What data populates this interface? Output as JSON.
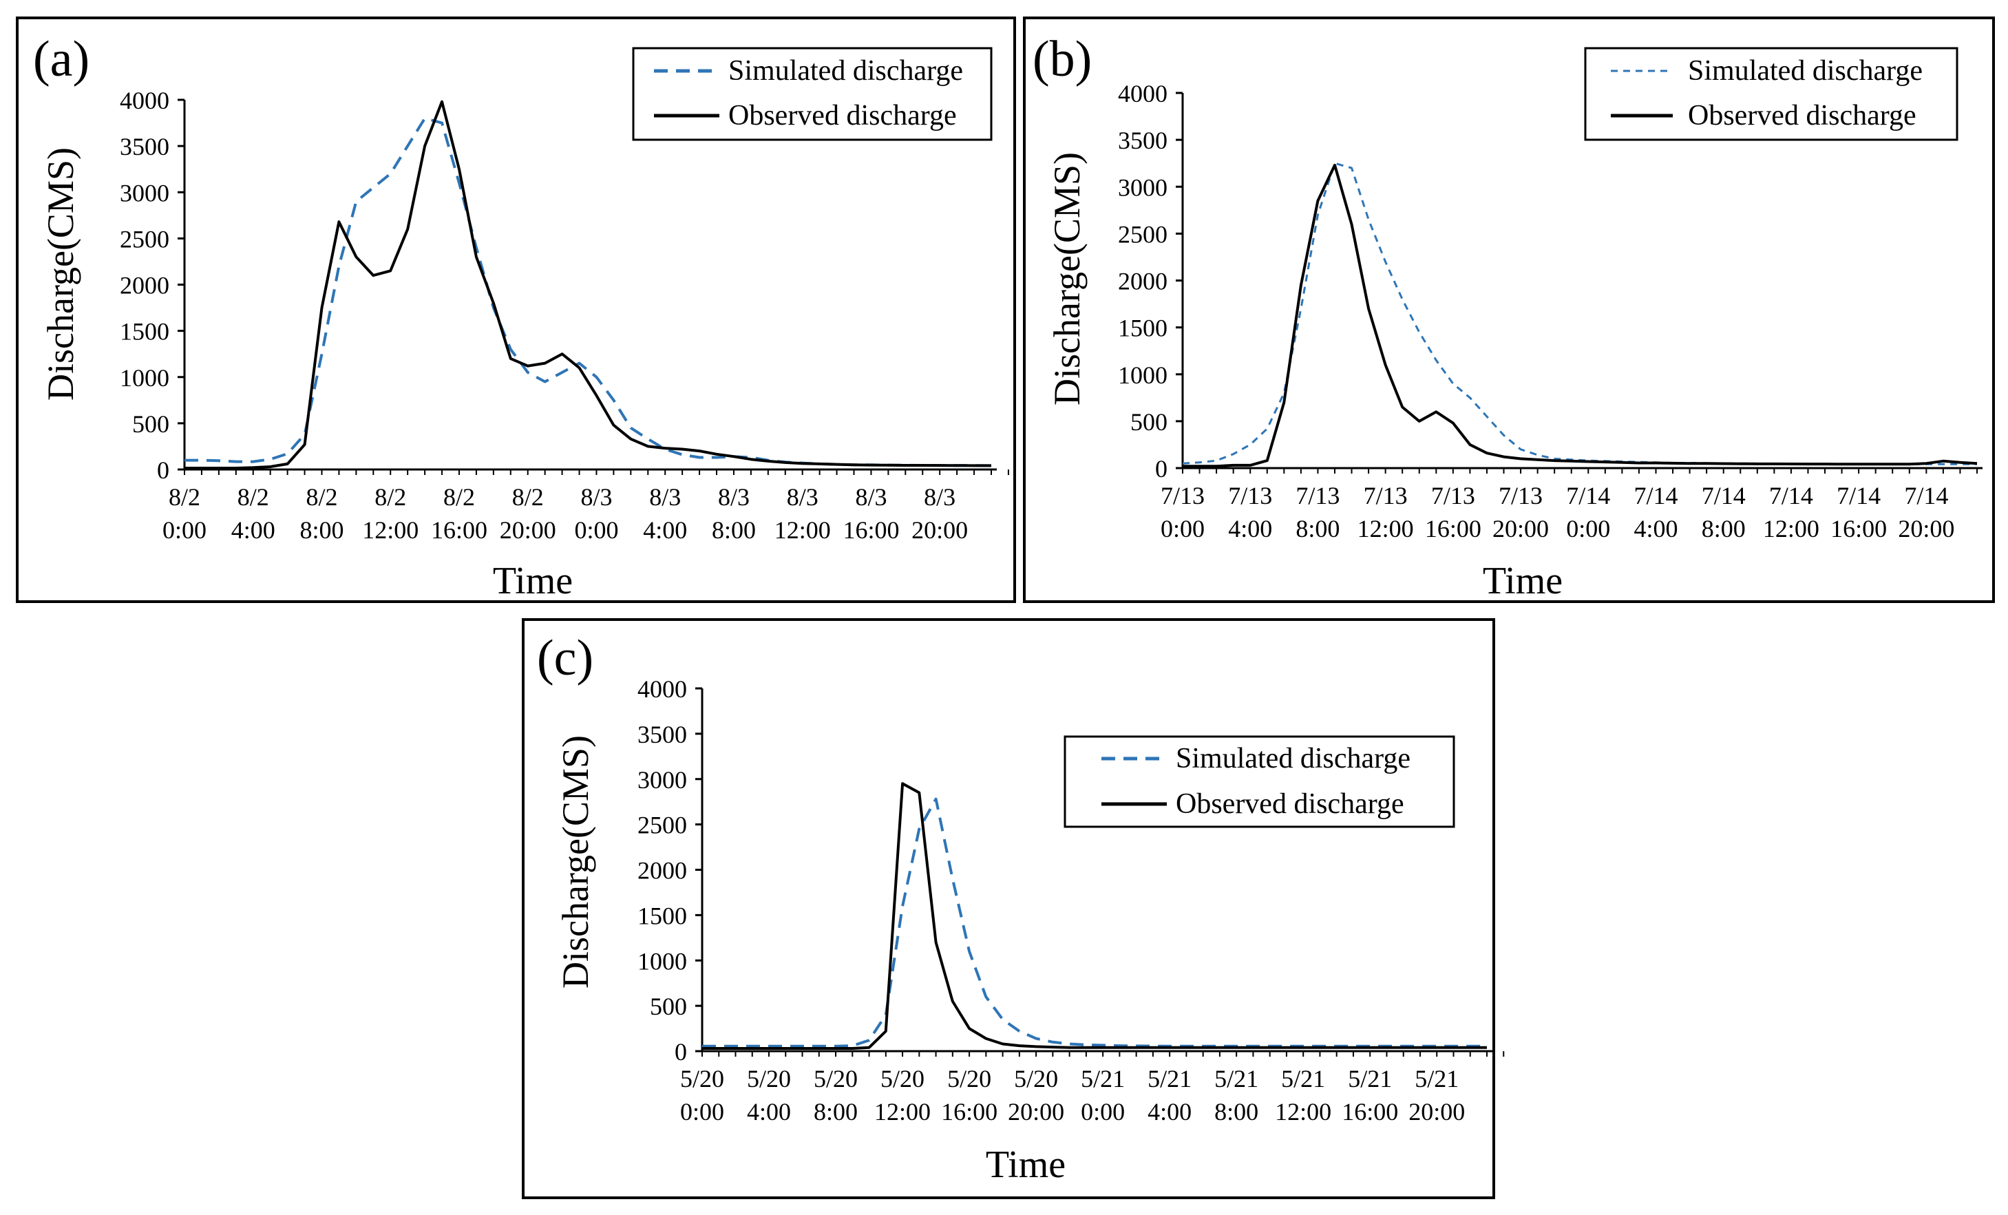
{
  "figure": {
    "legend_simulated": "Simulated discharge",
    "legend_observed": "Observed discharge",
    "simulated_color": "#2e75b6",
    "observed_color": "#000000"
  },
  "chart_data": [
    {
      "type": "line",
      "panel_label": "(a)",
      "xlabel": "Time",
      "ylabel": "Discharge(CMS)",
      "ylim": [
        0,
        4000
      ],
      "yticks": [
        0,
        500,
        1000,
        1500,
        2000,
        2500,
        3000,
        3500,
        4000
      ],
      "xlim": [
        0,
        47
      ],
      "x_tick_positions": [
        0,
        4,
        8,
        12,
        16,
        20,
        24,
        28,
        32,
        36,
        40,
        44
      ],
      "x_tick_labels": [
        [
          "8/2",
          "0:00"
        ],
        [
          "8/2",
          "4:00"
        ],
        [
          "8/2",
          "8:00"
        ],
        [
          "8/2",
          "12:00"
        ],
        [
          "8/2",
          "16:00"
        ],
        [
          "8/2",
          "20:00"
        ],
        [
          "8/3",
          "0:00"
        ],
        [
          "8/3",
          "4:00"
        ],
        [
          "8/3",
          "8:00"
        ],
        [
          "8/3",
          "12:00"
        ],
        [
          "8/3",
          "16:00"
        ],
        [
          "8/3",
          "20:00"
        ]
      ],
      "legend_position": "top-right",
      "x": [
        0,
        1,
        2,
        3,
        4,
        5,
        6,
        7,
        8,
        9,
        10,
        11,
        12,
        13,
        14,
        15,
        16,
        17,
        18,
        19,
        20,
        21,
        22,
        23,
        24,
        25,
        26,
        27,
        28,
        29,
        30,
        31,
        32,
        33,
        34,
        35,
        36,
        37,
        38,
        39,
        40,
        41,
        42,
        43,
        44,
        45,
        46,
        47
      ],
      "series": [
        {
          "name": "Simulated discharge",
          "style": "dashed",
          "values": [
            100,
            100,
            95,
            85,
            85,
            110,
            170,
            380,
            1250,
            2200,
            2900,
            3050,
            3200,
            3500,
            3800,
            3750,
            3100,
            2400,
            1750,
            1300,
            1050,
            950,
            1050,
            1150,
            1000,
            750,
            450,
            330,
            220,
            160,
            130,
            130,
            140,
            130,
            100,
            80,
            70,
            60,
            55,
            50,
            50,
            48,
            46,
            45,
            45,
            44,
            43,
            42
          ]
        },
        {
          "name": "Observed discharge",
          "style": "solid",
          "values": [
            15,
            15,
            15,
            15,
            20,
            30,
            60,
            270,
            1750,
            2680,
            2300,
            2100,
            2150,
            2600,
            3500,
            3980,
            3250,
            2300,
            1800,
            1200,
            1120,
            1150,
            1250,
            1100,
            800,
            480,
            330,
            250,
            230,
            220,
            200,
            165,
            140,
            110,
            90,
            75,
            65,
            60,
            55,
            50,
            48,
            46,
            45,
            45,
            44,
            43,
            42,
            42
          ]
        }
      ]
    },
    {
      "type": "line",
      "panel_label": "(b)",
      "xlabel": "Time",
      "ylabel": "Discharge(CMS)",
      "ylim": [
        0,
        4000
      ],
      "yticks": [
        0,
        500,
        1000,
        1500,
        2000,
        2500,
        3000,
        3500,
        4000
      ],
      "xlim": [
        0,
        47
      ],
      "x_tick_positions": [
        0,
        4,
        8,
        12,
        16,
        20,
        24,
        28,
        32,
        36,
        40,
        44
      ],
      "x_tick_labels": [
        [
          "7/13",
          "0:00"
        ],
        [
          "7/13",
          "4:00"
        ],
        [
          "7/13",
          "8:00"
        ],
        [
          "7/13",
          "12:00"
        ],
        [
          "7/13",
          "16:00"
        ],
        [
          "7/13",
          "20:00"
        ],
        [
          "7/14",
          "0:00"
        ],
        [
          "7/14",
          "4:00"
        ],
        [
          "7/14",
          "8:00"
        ],
        [
          "7/14",
          "12:00"
        ],
        [
          "7/14",
          "16:00"
        ],
        [
          "7/14",
          "20:00"
        ]
      ],
      "legend_position": "top-right",
      "x": [
        0,
        1,
        2,
        3,
        4,
        5,
        6,
        7,
        8,
        9,
        10,
        11,
        12,
        13,
        14,
        15,
        16,
        17,
        18,
        19,
        20,
        21,
        22,
        23,
        24,
        25,
        26,
        27,
        28,
        29,
        30,
        31,
        32,
        33,
        34,
        35,
        36,
        37,
        38,
        39,
        40,
        41,
        42,
        43,
        44,
        45,
        46,
        47
      ],
      "series": [
        {
          "name": "Simulated discharge",
          "style": "dashed",
          "values": [
            50,
            60,
            80,
            150,
            250,
            420,
            800,
            1700,
            2700,
            3250,
            3200,
            2650,
            2200,
            1800,
            1450,
            1150,
            900,
            750,
            550,
            350,
            200,
            140,
            100,
            90,
            80,
            75,
            70,
            65,
            60,
            55,
            55,
            52,
            50,
            50,
            48,
            47,
            46,
            45,
            45,
            44,
            44,
            43,
            43,
            42,
            42,
            42,
            42,
            42
          ]
        },
        {
          "name": "Observed discharge",
          "style": "solid",
          "values": [
            20,
            20,
            20,
            30,
            30,
            80,
            700,
            1950,
            2850,
            3230,
            2600,
            1700,
            1100,
            650,
            500,
            600,
            480,
            250,
            160,
            120,
            100,
            90,
            80,
            75,
            70,
            65,
            60,
            55,
            55,
            52,
            50,
            50,
            48,
            46,
            45,
            45,
            44,
            43,
            43,
            42,
            42,
            42,
            42,
            42,
            50,
            75,
            60,
            50
          ]
        }
      ]
    },
    {
      "type": "line",
      "panel_label": "(c)",
      "xlabel": "Time",
      "ylabel": "Discharge(CMS)",
      "ylim": [
        0,
        4000
      ],
      "yticks": [
        0,
        500,
        1000,
        1500,
        2000,
        2500,
        3000,
        3500,
        4000
      ],
      "xlim": [
        0,
        47
      ],
      "x_tick_positions": [
        0,
        4,
        8,
        12,
        16,
        20,
        24,
        28,
        32,
        36,
        40,
        44
      ],
      "x_tick_labels": [
        [
          "5/20",
          "0:00"
        ],
        [
          "5/20",
          "4:00"
        ],
        [
          "5/20",
          "8:00"
        ],
        [
          "5/20",
          "12:00"
        ],
        [
          "5/20",
          "16:00"
        ],
        [
          "5/20",
          "20:00"
        ],
        [
          "5/21",
          "0:00"
        ],
        [
          "5/21",
          "4:00"
        ],
        [
          "5/21",
          "8:00"
        ],
        [
          "5/21",
          "12:00"
        ],
        [
          "5/21",
          "16:00"
        ],
        [
          "5/21",
          "20:00"
        ]
      ],
      "legend_position": "center-right",
      "x": [
        0,
        1,
        2,
        3,
        4,
        5,
        6,
        7,
        8,
        9,
        10,
        11,
        12,
        13,
        14,
        15,
        16,
        17,
        18,
        19,
        20,
        21,
        22,
        23,
        24,
        25,
        26,
        27,
        28,
        29,
        30,
        31,
        32,
        33,
        34,
        35,
        36,
        37,
        38,
        39,
        40,
        41,
        42,
        43,
        44,
        45,
        46,
        47
      ],
      "series": [
        {
          "name": "Simulated discharge",
          "style": "dashed",
          "values": [
            55,
            55,
            55,
            55,
            55,
            55,
            55,
            55,
            55,
            60,
            120,
            400,
            1600,
            2450,
            2780,
            1900,
            1100,
            600,
            350,
            220,
            140,
            100,
            80,
            70,
            65,
            60,
            58,
            56,
            55,
            55,
            55,
            55,
            55,
            55,
            55,
            55,
            55,
            55,
            55,
            55,
            55,
            55,
            55,
            55,
            55,
            55,
            55,
            55
          ]
        },
        {
          "name": "Observed discharge",
          "style": "solid",
          "values": [
            30,
            30,
            30,
            30,
            30,
            30,
            30,
            30,
            30,
            30,
            40,
            220,
            2950,
            2850,
            1200,
            550,
            250,
            140,
            80,
            60,
            50,
            45,
            40,
            40,
            40,
            40,
            40,
            40,
            40,
            40,
            40,
            40,
            40,
            40,
            40,
            40,
            40,
            40,
            40,
            40,
            40,
            40,
            40,
            40,
            40,
            40,
            40,
            40
          ]
        }
      ]
    }
  ]
}
